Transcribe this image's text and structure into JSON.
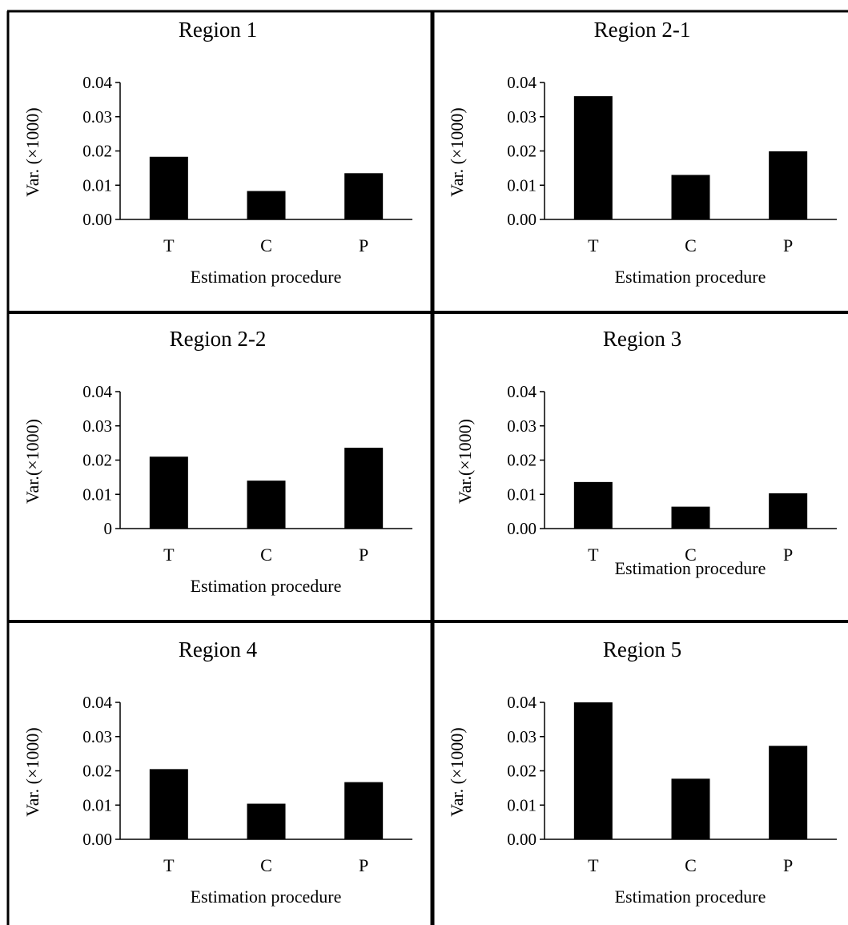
{
  "chart_data": [
    {
      "type": "bar",
      "title": "Region 1",
      "categories": [
        "T",
        "C",
        "P"
      ],
      "values": [
        0.0183,
        0.0083,
        0.0135
      ],
      "xlabel": "Estimation  procedure",
      "ylabel": "Var. (×1000)",
      "ylim": [
        0,
        0.04
      ],
      "yticks": [
        "0.00",
        "0.01",
        "0.02",
        "0.03",
        "0.04"
      ],
      "grid": false
    },
    {
      "type": "bar",
      "title": "Region 2-1",
      "categories": [
        "T",
        "C",
        "P"
      ],
      "values": [
        0.036,
        0.013,
        0.0199
      ],
      "xlabel": "Estimation procedure",
      "ylabel": "Var. (×1000)",
      "ylim": [
        0,
        0.04
      ],
      "yticks": [
        "0.00",
        "0.01",
        "0.02",
        "0.03",
        "0.04"
      ],
      "grid": false
    },
    {
      "type": "bar",
      "title": "Region 2-2",
      "categories": [
        "T",
        "C",
        "P"
      ],
      "values": [
        0.021,
        0.014,
        0.0236
      ],
      "xlabel": "Estimation procedure",
      "ylabel": "Var.(×1000)",
      "ylim": [
        0,
        0.04
      ],
      "yticks": [
        "0",
        "0.01",
        "0.02",
        "0.03",
        "0.04"
      ],
      "grid": false
    },
    {
      "type": "bar",
      "title": "Region 3",
      "categories": [
        "T",
        "C",
        "P"
      ],
      "values": [
        0.0136,
        0.0064,
        0.0103
      ],
      "xlabel": "Estimation procedure",
      "ylabel": "Var.(×1000)",
      "ylim": [
        0,
        0.04
      ],
      "yticks": [
        "0.00",
        "0.01",
        "0.02",
        "0.03",
        "0.04"
      ],
      "grid": false
    },
    {
      "type": "bar",
      "title": "Region 4",
      "categories": [
        "T",
        "C",
        "P"
      ],
      "values": [
        0.0205,
        0.0104,
        0.0167
      ],
      "xlabel": "Estimation procedure",
      "ylabel": "Var. (×1000)",
      "ylim": [
        0,
        0.04
      ],
      "yticks": [
        "0.00",
        "0.01",
        "0.02",
        "0.03",
        "0.04"
      ],
      "grid": false
    },
    {
      "type": "bar",
      "title": "Region 5",
      "categories": [
        "T",
        "C",
        "P"
      ],
      "values": [
        0.04,
        0.0177,
        0.0273
      ],
      "xlabel": "Estimation procedure",
      "ylabel": "Var. (×1000)",
      "ylim": [
        0,
        0.04
      ],
      "yticks": [
        "0.00",
        "0.01",
        "0.02",
        "0.03",
        "0.04"
      ],
      "grid": false
    }
  ],
  "colors": {
    "bar": "#000000",
    "axis": "#000000",
    "border": "#000000"
  }
}
